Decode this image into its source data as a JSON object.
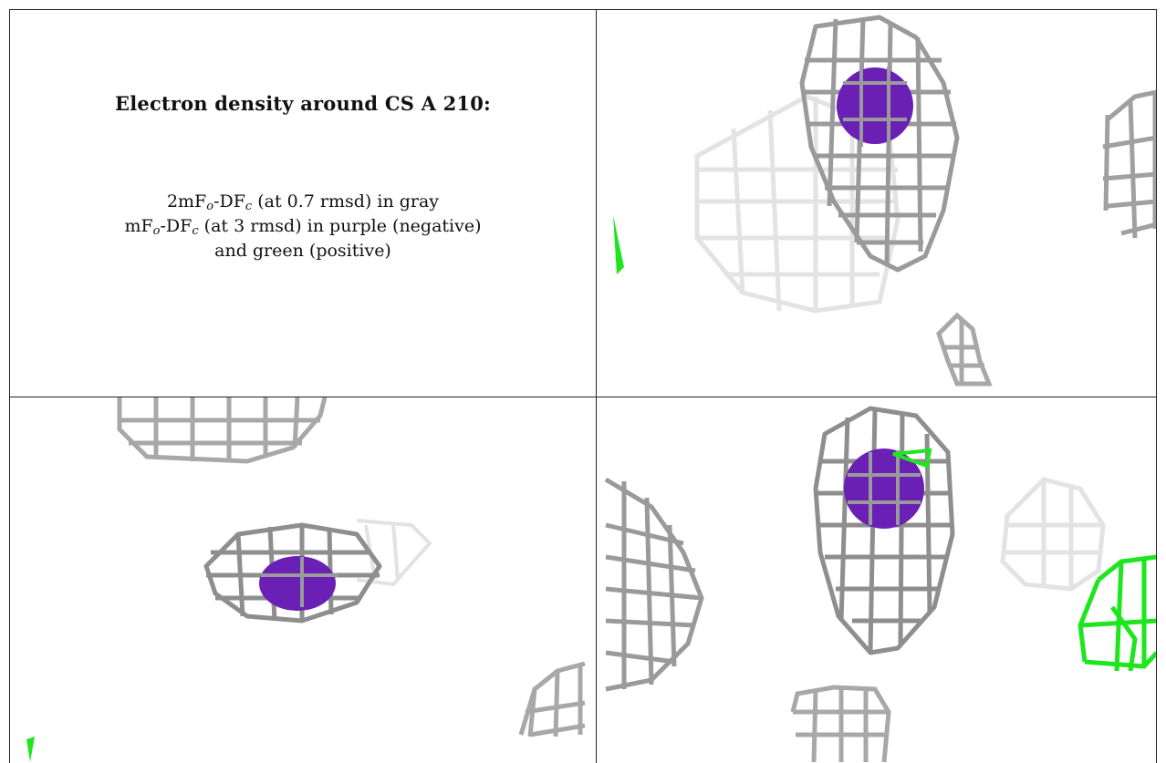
{
  "title": "Electron density around CS A 210:",
  "caption": {
    "line1": {
      "a": "2mF",
      "o": "o",
      "b": "-DF",
      "c": "c",
      "rest": " (at 0.7 rmsd) in gray"
    },
    "line2": {
      "a": "mF",
      "o": "o",
      "b": "-DF",
      "c": "c",
      "rest": " (at 3 rmsd) in purple (negative)"
    },
    "line3": "and green (positive)"
  },
  "colors": {
    "mesh_dark": "#8a8a8a",
    "mesh_light": "#d6d6d6",
    "mesh_faint": "#e6e6e6",
    "negative": "#6a1fb5",
    "positive": "#1ee61e"
  },
  "panels": [
    {
      "name": "view-1",
      "contents": [
        "gray-mesh",
        "purple-sphere",
        "green-fragment"
      ]
    },
    {
      "name": "view-2",
      "contents": [
        "gray-mesh",
        "purple-sphere",
        "green-fragment"
      ]
    },
    {
      "name": "view-3",
      "contents": [
        "gray-mesh",
        "purple-sphere",
        "green-mesh"
      ]
    }
  ]
}
